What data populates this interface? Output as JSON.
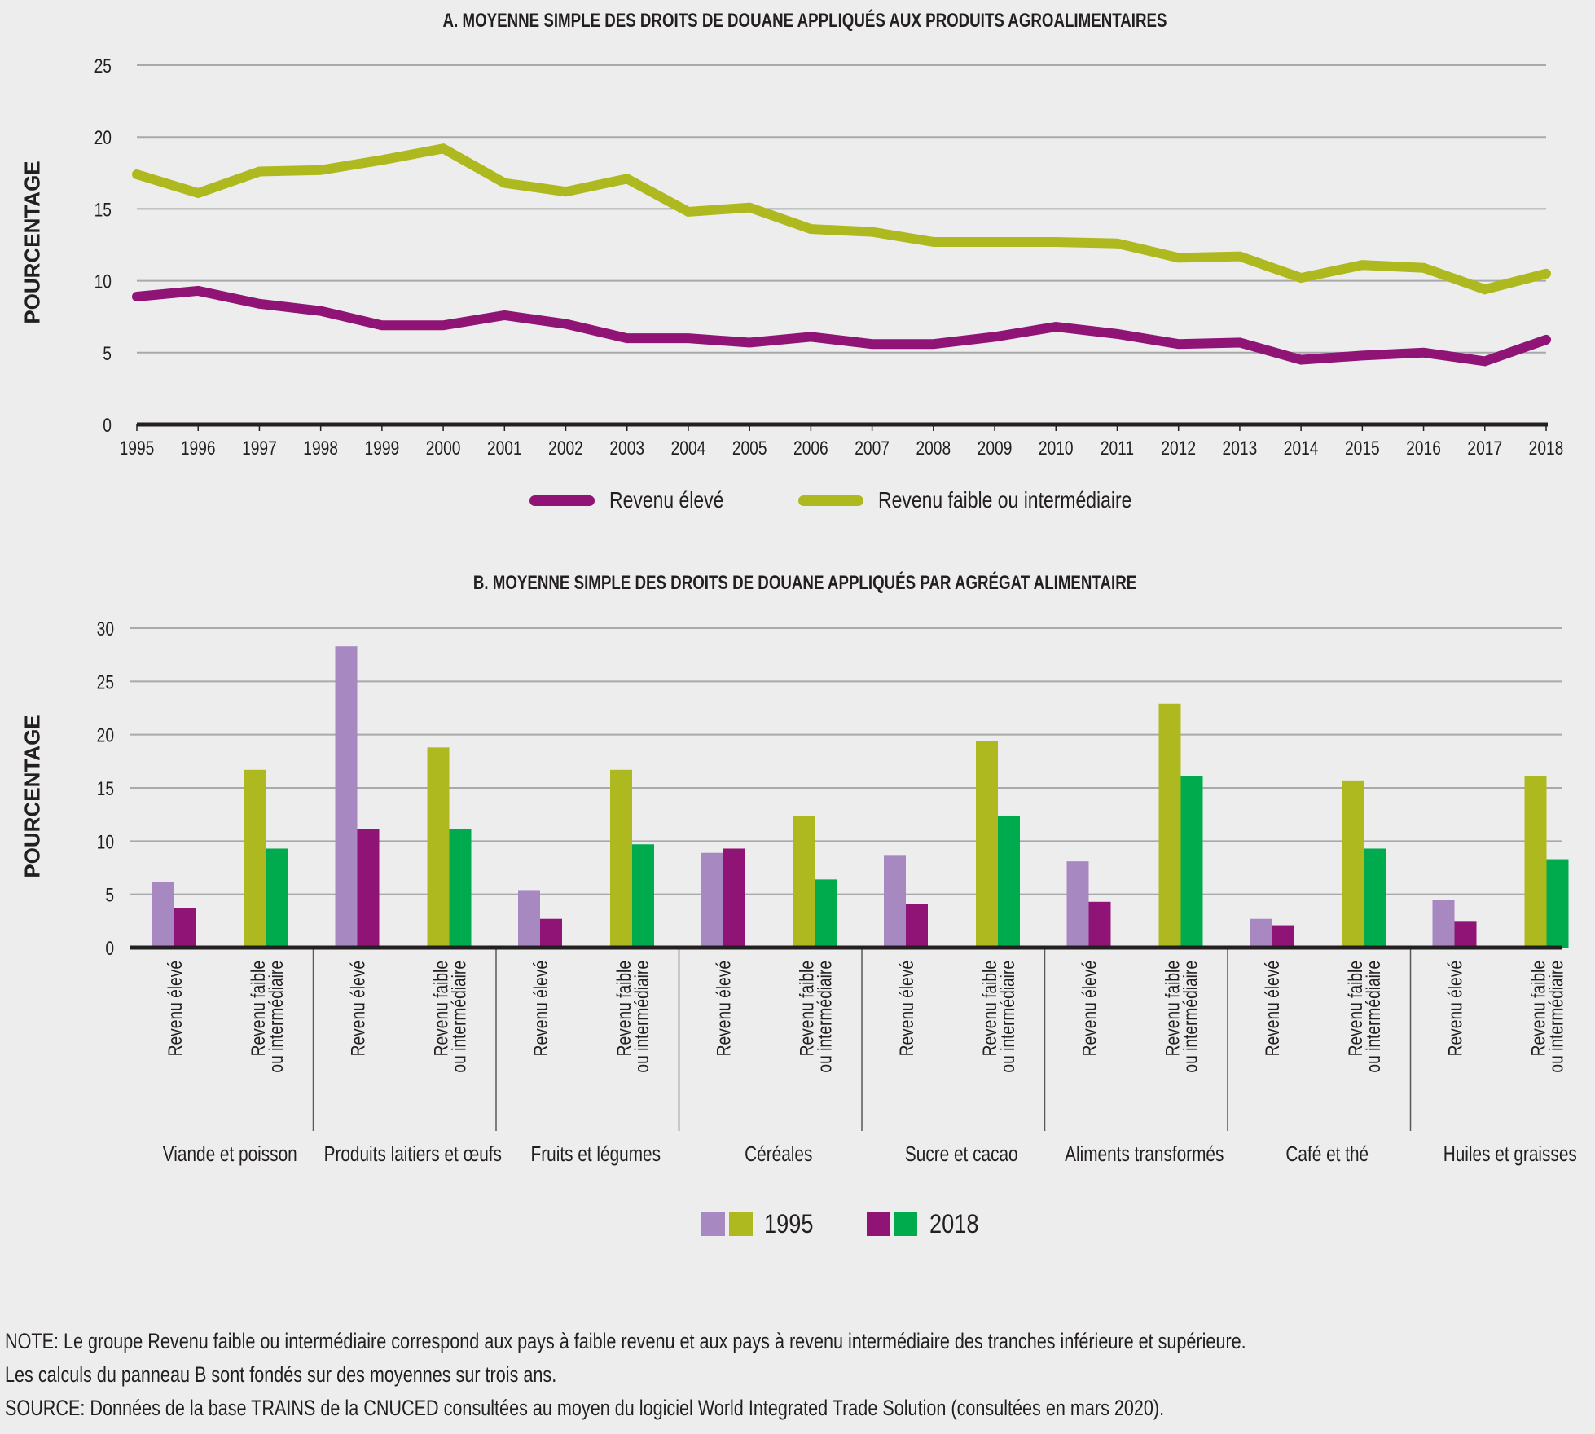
{
  "chart_data": [
    {
      "type": "line",
      "title": "A. MOYENNE SIMPLE DES DROITS DE DOUANE APPLIQUÉS AUX PRODUITS AGROALIMENTAIRES",
      "xlabel": "",
      "ylabel": "POURCENTAGE",
      "ylim": [
        0,
        25
      ],
      "yticks": [
        0,
        5,
        10,
        15,
        20,
        25
      ],
      "grid": true,
      "legend_position": "bottom-center",
      "x": [
        "1995",
        "1996",
        "1997",
        "1998",
        "1999",
        "2000",
        "2001",
        "2002",
        "2003",
        "2004",
        "2005",
        "2006",
        "2007",
        "2008",
        "2009",
        "2010",
        "2011",
        "2012",
        "2013",
        "2014",
        "2015",
        "2016",
        "2017",
        "2018"
      ],
      "series": [
        {
          "name": "Revenu élevé",
          "color": "#8f1475",
          "values": [
            8.9,
            9.3,
            8.4,
            7.9,
            6.9,
            6.9,
            7.6,
            7.0,
            6.0,
            6.0,
            5.7,
            6.1,
            5.6,
            5.6,
            6.1,
            6.8,
            6.3,
            5.6,
            5.7,
            4.5,
            4.8,
            5.0,
            4.4,
            5.9
          ]
        },
        {
          "name": "Revenu faible ou intermédiaire",
          "color": "#aeb91f",
          "values": [
            17.4,
            16.1,
            17.6,
            17.7,
            18.4,
            19.2,
            16.8,
            16.2,
            17.1,
            14.8,
            15.1,
            13.6,
            13.4,
            12.7,
            12.7,
            12.7,
            12.6,
            11.6,
            11.7,
            10.2,
            11.1,
            10.9,
            9.4,
            10.5
          ]
        }
      ]
    },
    {
      "type": "bar",
      "title": "B. MOYENNE SIMPLE DES DROITS DE DOUANE APPLIQUÉS PAR AGRÉGAT ALIMENTAIRE",
      "xlabel": "",
      "ylabel": "POURCENTAGE",
      "ylim": [
        0,
        30
      ],
      "yticks": [
        0,
        5,
        10,
        15,
        20,
        25,
        30
      ],
      "grid": true,
      "legend_position": "bottom-center",
      "groups": [
        "Revenu élevé",
        "Revenu faible ou intermédiaire"
      ],
      "group_labels": [
        [
          "Revenu élevé"
        ],
        [
          "Revenu faible",
          "ou intermédiaire"
        ]
      ],
      "categories": [
        "Viande et poisson",
        "Produits laitiers et œufs",
        "Fruits et légumes",
        "Céréales",
        "Sucre et cacao",
        "Aliments transformés",
        "Café et thé",
        "Huiles et graisses"
      ],
      "series": [
        {
          "name": "1995 Revenu élevé",
          "year": "1995",
          "group": "Revenu élevé",
          "color": "#a888c0",
          "values": [
            6.2,
            28.3,
            5.4,
            8.9,
            8.7,
            8.1,
            2.7,
            4.5
          ]
        },
        {
          "name": "2018 Revenu élevé",
          "year": "2018",
          "group": "Revenu élevé",
          "color": "#8f1475",
          "values": [
            3.7,
            11.1,
            2.7,
            9.3,
            4.1,
            4.3,
            2.1,
            2.5
          ]
        },
        {
          "name": "1995 Revenu faible ou intermédiaire",
          "year": "1995",
          "group": "Revenu faible ou intermédiaire",
          "color": "#aeb91f",
          "values": [
            16.7,
            18.8,
            16.7,
            12.4,
            19.4,
            22.9,
            15.7,
            16.1
          ]
        },
        {
          "name": "2018 Revenu faible ou intermédiaire",
          "year": "2018",
          "group": "Revenu faible ou intermédiaire",
          "color": "#00ab4e",
          "values": [
            9.3,
            11.1,
            9.7,
            6.4,
            12.4,
            16.1,
            9.3,
            8.3
          ]
        }
      ],
      "legend": [
        {
          "label": "1995",
          "colors": [
            "#a888c0",
            "#aeb91f"
          ]
        },
        {
          "label": "2018",
          "colors": [
            "#8f1475",
            "#00ab4e"
          ]
        }
      ]
    }
  ],
  "legend_a": [
    {
      "label": "Revenu élevé",
      "color": "#8f1475"
    },
    {
      "label": "Revenu faible ou intermédiaire",
      "color": "#aeb91f"
    }
  ],
  "notes": [
    "NOTE: Le groupe Revenu faible ou intermédiaire correspond aux pays à faible revenu et aux pays à revenu intermédiaire des tranches inférieure et supérieure.",
    "Les calculs du panneau B sont fondés sur des moyennes sur trois ans.",
    "SOURCE: Données de la base TRAINS de la CNUCED consultées au moyen du logiciel World Integrated Trade Solution (consultées en mars 2020)."
  ]
}
